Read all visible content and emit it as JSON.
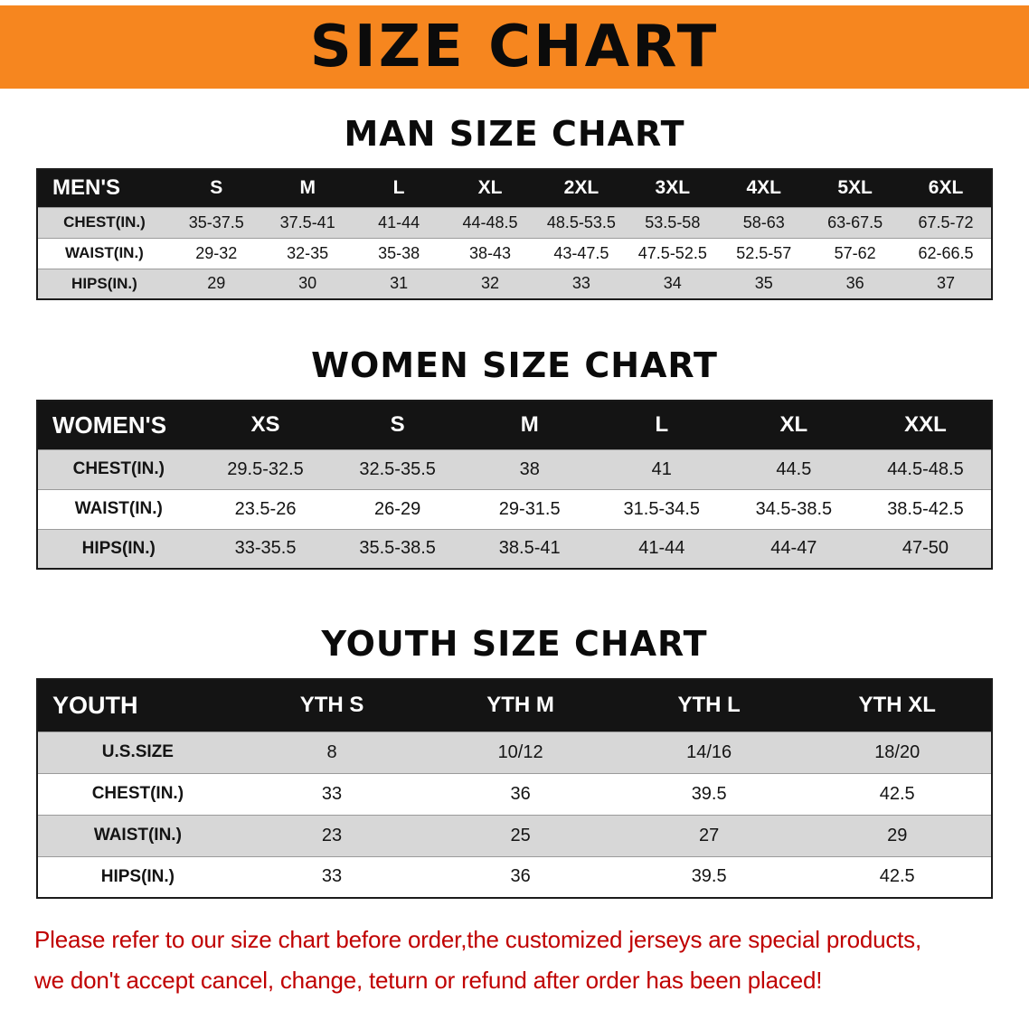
{
  "banner": {
    "title": "SIZE CHART",
    "bg_color": "#F6861F",
    "text_color": "#0B0B0B"
  },
  "men": {
    "heading": "MAN SIZE CHART",
    "table": {
      "header": [
        "MEN'S",
        "S",
        "M",
        "L",
        "XL",
        "2XL",
        "3XL",
        "4XL",
        "5XL",
        "6XL"
      ],
      "rows": [
        [
          "CHEST(IN.)",
          "35-37.5",
          "37.5-41",
          "41-44",
          "44-48.5",
          "48.5-53.5",
          "53.5-58",
          "58-63",
          "63-67.5",
          "67.5-72"
        ],
        [
          "WAIST(IN.)",
          "29-32",
          "32-35",
          "35-38",
          "38-43",
          "43-47.5",
          "47.5-52.5",
          "52.5-57",
          "57-62",
          "62-66.5"
        ],
        [
          "HIPS(IN.)",
          "29",
          "30",
          "31",
          "32",
          "33",
          "34",
          "35",
          "36",
          "37"
        ]
      ]
    }
  },
  "women": {
    "heading": "WOMEN SIZE CHART",
    "table": {
      "header": [
        "WOMEN'S",
        "XS",
        "S",
        "M",
        "L",
        "XL",
        "XXL"
      ],
      "rows": [
        [
          "CHEST(IN.)",
          "29.5-32.5",
          "32.5-35.5",
          "38",
          "41",
          "44.5",
          "44.5-48.5"
        ],
        [
          "WAIST(IN.)",
          "23.5-26",
          "26-29",
          "29-31.5",
          "31.5-34.5",
          "34.5-38.5",
          "38.5-42.5"
        ],
        [
          "HIPS(IN.)",
          "33-35.5",
          "35.5-38.5",
          "38.5-41",
          "41-44",
          "44-47",
          "47-50"
        ]
      ]
    }
  },
  "youth": {
    "heading": "YOUTH SIZE CHART",
    "table": {
      "header": [
        "YOUTH",
        "YTH S",
        "YTH M",
        "YTH L",
        "YTH XL"
      ],
      "rows": [
        [
          "U.S.SIZE",
          "8",
          "10/12",
          "14/16",
          "18/20"
        ],
        [
          "CHEST(IN.)",
          "33",
          "36",
          "39.5",
          "42.5"
        ],
        [
          "WAIST(IN.)",
          "23",
          "25",
          "27",
          "29"
        ],
        [
          "HIPS(IN.)",
          "33",
          "36",
          "39.5",
          "42.5"
        ]
      ]
    }
  },
  "footer": {
    "line1": "Please refer to our size chart before order,the customized jerseys are special products,",
    "line2": "we don't accept cancel, change, teturn or refund after order has been placed!",
    "text_color": "#C00000"
  },
  "colors": {
    "banner_orange": "#F6861F",
    "table_header_bg": "#141414",
    "row_alt_gray": "#D7D7D7",
    "note_red": "#C00000"
  }
}
